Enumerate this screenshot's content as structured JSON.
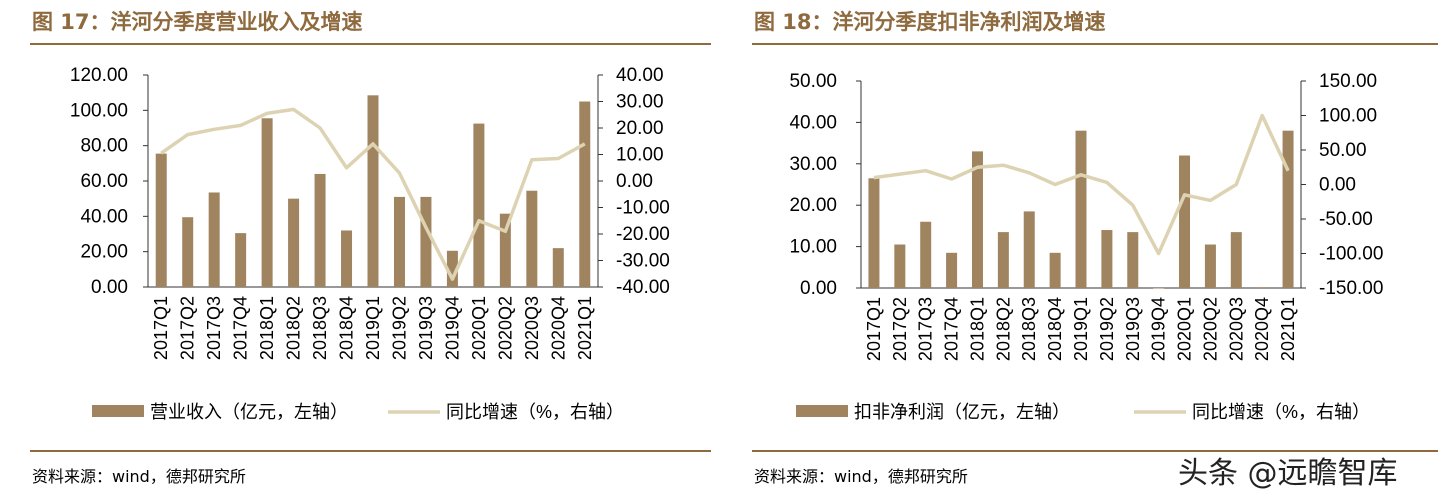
{
  "left": {
    "title": "图 17：洋河分季度营业收入及增速",
    "source": "资料来源：wind，德邦研究所"
  },
  "right": {
    "title": "图 18：洋河分季度扣非净利润及增速",
    "source": "资料来源：wind，德邦研究所"
  },
  "watermark": "头条 @远瞻智库",
  "colors": {
    "bar": "#a08460",
    "line": "#ddd3b3",
    "accent": "#8f6a3e"
  },
  "chart_data": [
    {
      "type": "bar+line",
      "categories": [
        "2017Q1",
        "2017Q2",
        "2017Q3",
        "2017Q4",
        "2018Q1",
        "2018Q2",
        "2018Q3",
        "2018Q4",
        "2019Q1",
        "2019Q2",
        "2019Q3",
        "2019Q4",
        "2020Q1",
        "2020Q2",
        "2020Q3",
        "2020Q4",
        "2021Q1"
      ],
      "series": [
        {
          "name": "营业收入（亿元，左轴）",
          "kind": "bar",
          "axis": "left",
          "values": [
            75.5,
            39.5,
            53.5,
            30.5,
            95.5,
            50.0,
            64.0,
            32.0,
            108.5,
            51.0,
            51.0,
            20.5,
            92.5,
            41.5,
            54.5,
            22.0,
            105.0
          ]
        },
        {
          "name": "同比增速（%，右轴）",
          "kind": "line",
          "axis": "right",
          "values": [
            10.5,
            17.5,
            19.5,
            21.0,
            25.5,
            27.0,
            20.0,
            5.0,
            14.0,
            3.0,
            -17.5,
            -37.0,
            -15.0,
            -19.0,
            8.0,
            8.5,
            14.0
          ]
        }
      ],
      "left_axis": {
        "min": 0,
        "max": 120,
        "ticks": [
          "0.00",
          "20.00",
          "40.00",
          "60.00",
          "80.00",
          "100.00",
          "120.00"
        ]
      },
      "right_axis": {
        "min": -40,
        "max": 40,
        "ticks": [
          "-40.00",
          "-30.00",
          "-20.00",
          "-10.00",
          "0.00",
          "10.00",
          "20.00",
          "30.00",
          "40.00"
        ]
      },
      "legend": {
        "position": "bottom",
        "items": [
          "营业收入（亿元，左轴）",
          "同比增速（%，右轴）"
        ]
      }
    },
    {
      "type": "bar+line",
      "categories": [
        "2017Q1",
        "2017Q2",
        "2017Q3",
        "2017Q4",
        "2018Q1",
        "2018Q2",
        "2018Q3",
        "2018Q4",
        "2019Q1",
        "2019Q2",
        "2019Q3",
        "2019Q4",
        "2020Q1",
        "2020Q2",
        "2020Q3",
        "2020Q4",
        "2021Q1"
      ],
      "series": [
        {
          "name": "扣非净利润（亿元，左轴）",
          "kind": "bar",
          "axis": "left",
          "values": [
            26.5,
            10.5,
            16.0,
            8.5,
            33.0,
            13.5,
            18.5,
            8.5,
            38.0,
            14.0,
            13.5,
            0.0,
            32.0,
            10.5,
            13.5,
            0.2,
            38.0
          ]
        },
        {
          "name": "同比增速（%，右轴）",
          "kind": "line",
          "axis": "right",
          "values": [
            10.0,
            15.0,
            20.0,
            8.0,
            25.0,
            28.0,
            17.0,
            0.0,
            14.0,
            3.0,
            -30.0,
            -100.0,
            -15.0,
            -23.0,
            0.0,
            100.0,
            20.0
          ]
        }
      ],
      "left_axis": {
        "min": 0,
        "max": 50,
        "ticks": [
          "0.00",
          "10.00",
          "20.00",
          "30.00",
          "40.00",
          "50.00"
        ]
      },
      "right_axis": {
        "min": -150,
        "max": 150,
        "ticks": [
          "-150.00",
          "-100.00",
          "-50.00",
          "0.00",
          "50.00",
          "100.00",
          "150.00"
        ]
      },
      "legend": {
        "position": "bottom",
        "items": [
          "扣非净利润（亿元，左轴）",
          "同比增速（%，右轴）"
        ]
      }
    }
  ]
}
